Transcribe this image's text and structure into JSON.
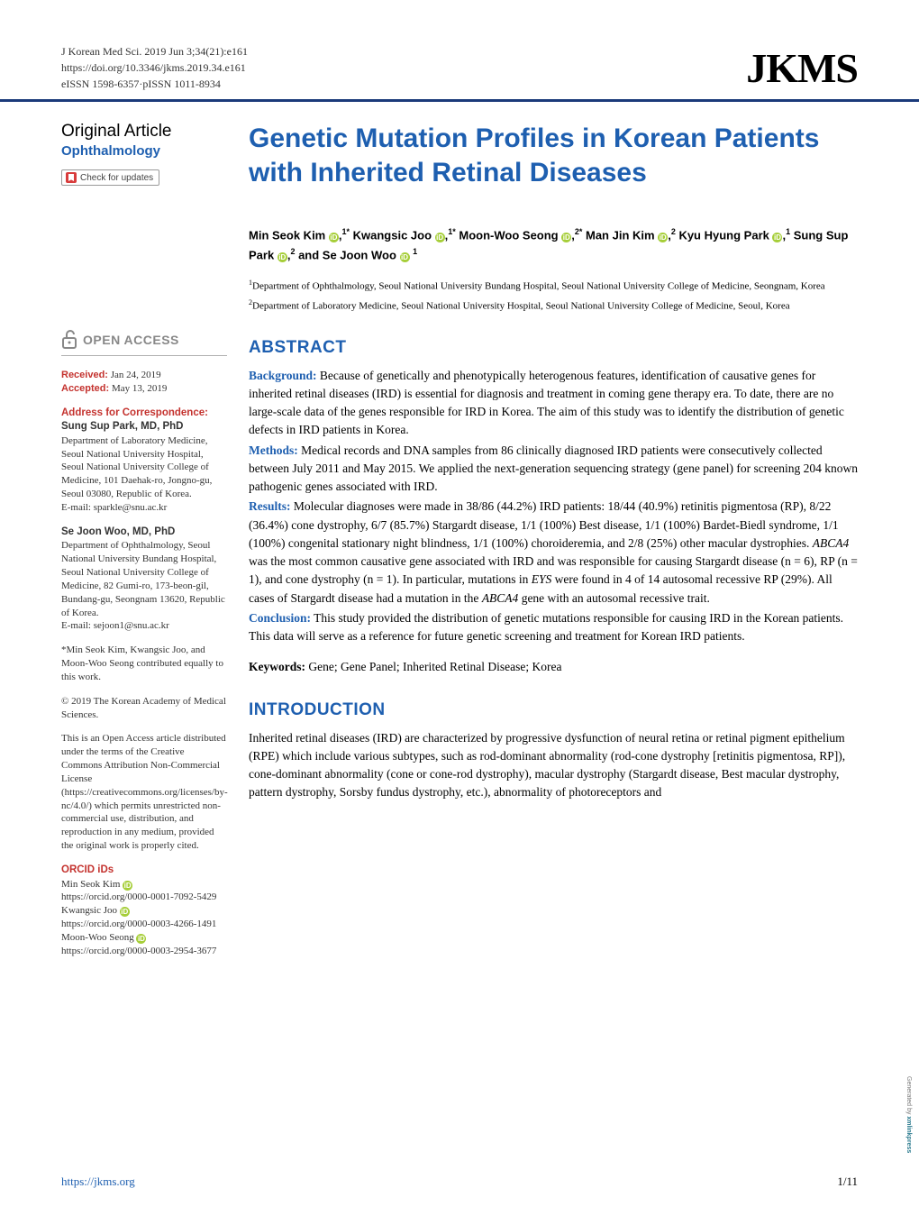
{
  "header": {
    "citation": "J Korean Med Sci. 2019 Jun 3;34(21):e161",
    "doi": "https://doi.org/10.3346/jkms.2019.34.e161",
    "issn": "eISSN 1598-6357·pISSN 1011-8934",
    "logo": "JKMS"
  },
  "sidebar": {
    "article_type": "Original Article",
    "subspecialty": "Ophthalmology",
    "check_updates": "Check for updates",
    "open_access": "OPEN ACCESS",
    "received_label": "Received:",
    "received_date": " Jan 24, 2019",
    "accepted_label": "Accepted:",
    "accepted_date": " May 13, 2019",
    "corr_title": "Address for Correspondence:",
    "corr1_name": "Sung Sup Park, MD, PhD",
    "corr1_addr": "Department of Laboratory Medicine, Seoul National University Hospital, Seoul National University College of Medicine, 101 Daehak-ro, Jongno-gu, Seoul 03080, Republic of Korea.",
    "corr1_email": "E-mail: sparkle@snu.ac.kr",
    "corr2_name": "Se Joon Woo, MD, PhD",
    "corr2_addr": "Department of Ophthalmology, Seoul National University Bundang Hospital, Seoul National University College of Medicine, 82 Gumi-ro, 173-beon-gil, Bundang-gu, Seongnam 13620, Republic of Korea.",
    "corr2_email": "E-mail: sejoon1@snu.ac.kr",
    "contrib_note": "*Min Seok Kim, Kwangsic Joo, and Moon-Woo Seong contributed equally to this work.",
    "copyright": "© 2019 The Korean Academy of Medical Sciences.",
    "license": "This is an Open Access article distributed under the terms of the Creative Commons Attribution Non-Commercial License (https://creativecommons.org/licenses/by-nc/4.0/) which permits unrestricted non-commercial use, distribution, and reproduction in any medium, provided the original work is properly cited.",
    "orcid_title": "ORCID iDs",
    "orcid": [
      {
        "name": "Min Seok Kim",
        "id": "https://orcid.org/0000-0001-7092-5429"
      },
      {
        "name": "Kwangsic Joo",
        "id": "https://orcid.org/0000-0003-4266-1491"
      },
      {
        "name": "Moon-Woo Seong",
        "id": "https://orcid.org/0000-0003-2954-3677"
      }
    ]
  },
  "article": {
    "title": "Genetic Mutation Profiles in Korean Patients with Inherited Retinal Diseases",
    "authors_html": "Min Seok Kim <span class='orcid-icon'>iD</span>,<sup>1*</sup> Kwangsic Joo <span class='orcid-icon'>iD</span>,<sup>1*</sup> Moon-Woo Seong <span class='orcid-icon'>iD</span>,<sup>2*</sup> Man Jin Kim <span class='orcid-icon'>iD</span>,<sup>2</sup> Kyu Hyung Park <span class='orcid-icon'>iD</span>,<sup>1</sup> Sung Sup Park <span class='orcid-icon'>iD</span>,<sup>2</sup> and Se Joon Woo <span class='orcid-icon'>iD</span> <sup>1</sup>",
    "affil1": "Department of Ophthalmology, Seoul National University Bundang Hospital, Seoul National University College of Medicine, Seongnam, Korea",
    "affil2": "Department of Laboratory Medicine, Seoul National University Hospital, Seoul National University College of Medicine, Seoul, Korea",
    "abstract_title": "ABSTRACT",
    "background_label": "Background:",
    "background": " Because of genetically and phenotypically heterogenous features, identification of causative genes for inherited retinal diseases (IRD) is essential for diagnosis and treatment in coming gene therapy era. To date, there are no large-scale data of the genes responsible for IRD in Korea. The aim of this study was to identify the distribution of genetic defects in IRD patients in Korea.",
    "methods_label": "Methods:",
    "methods": " Medical records and DNA samples from 86 clinically diagnosed IRD patients were consecutively collected between July 2011 and May 2015. We applied the next-generation sequencing strategy (gene panel) for screening 204 known pathogenic genes associated with IRD.",
    "results_label": "Results:",
    "results_html": " Molecular diagnoses were made in 38/86 (44.2%) IRD patients: 18/44 (40.9%) retinitis pigmentosa (RP), 8/22 (36.4%) cone dystrophy, 6/7 (85.7%) Stargardt disease, 1/1 (100%) Best disease, 1/1 (100%) Bardet-Biedl syndrome, 1/1 (100%) congenital stationary night blindness, 1/1 (100%) choroideremia, and 2/8 (25%) other macular dystrophies. <em>ABCA4</em> was the most common causative gene associated with IRD and was responsible for causing Stargardt disease (n = 6), RP (n = 1), and cone dystrophy (n = 1). In particular, mutations in <em>EYS</em> were found in 4 of 14 autosomal recessive RP (29%). All cases of Stargardt disease had a mutation in the <em>ABCA4</em> gene with an autosomal recessive trait.",
    "conclusion_label": "Conclusion:",
    "conclusion": " This study provided the distribution of genetic mutations responsible for causing IRD in the Korean patients. This data will serve as a reference for future genetic screening and treatment for Korean IRD patients.",
    "keywords_label": "Keywords:",
    "keywords": " Gene; Gene Panel; Inherited Retinal Disease; Korea",
    "intro_title": "INTRODUCTION",
    "intro": "Inherited retinal diseases (IRD) are characterized by progressive dysfunction of neural retina or retinal pigment epithelium (RPE) which include various subtypes, such as rod-dominant abnormality (rod-cone dystrophy [retinitis pigmentosa, RP]), cone-dominant abnormality (cone or cone-rod dystrophy), macular dystrophy (Stargardt disease, Best macular dystrophy, pattern dystrophy, Sorsby fundus dystrophy, etc.), abnormality of photoreceptors and"
  },
  "footer": {
    "url": "https://jkms.org",
    "page": "1/11"
  },
  "watermark": {
    "gen": "Generated by ",
    "brand": "xmlinkpress"
  },
  "colors": {
    "brand_blue": "#1e5fb0",
    "rule_blue": "#1a3a7a",
    "red": "#c4322e",
    "orcid_green": "#a6ce39",
    "gray": "#888888"
  }
}
